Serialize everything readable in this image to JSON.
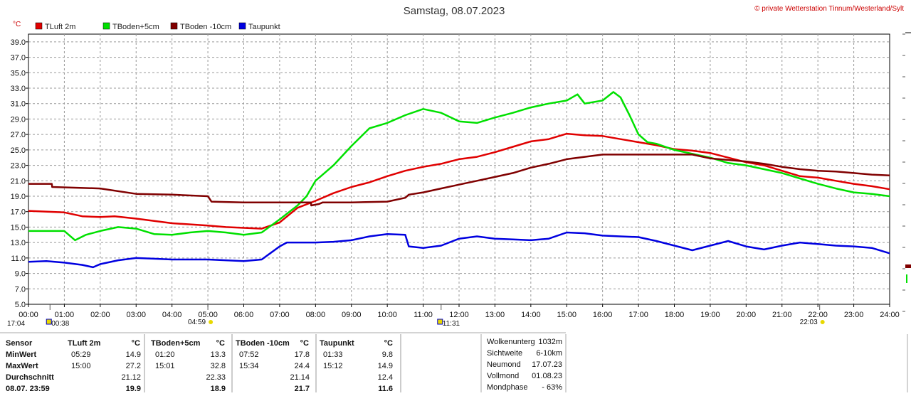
{
  "header": {
    "title": "Samstag, 08.07.2023",
    "copyright": "© private Wetterstation Tinnum/Westerland/Sylt",
    "unit": "°C"
  },
  "colors": {
    "tluft": "#e00000",
    "tboden5": "#00e000",
    "tboden10": "#800000",
    "taupunkt": "#0000e0",
    "marker": "#e8d800"
  },
  "chart_data": {
    "type": "line",
    "title": "Samstag, 08.07.2023",
    "ylabel": "°C",
    "xlabel": "",
    "xlim": [
      0,
      24
    ],
    "ylim": [
      5.0,
      40.0
    ],
    "grid": true,
    "legend_position": "top-left",
    "y_ticks": [
      "5.0",
      "7.0",
      "9.0",
      "11.0",
      "13.0",
      "15.0",
      "17.0",
      "19.0",
      "21.0",
      "23.0",
      "25.0",
      "27.0",
      "29.0",
      "31.0",
      "33.0",
      "35.0",
      "37.0",
      "39.0"
    ],
    "x_ticks": [
      "00:00",
      "01:00",
      "02:00",
      "03:00",
      "04:00",
      "05:00",
      "06:00",
      "07:00",
      "08:00",
      "09:00",
      "10:00",
      "11:00",
      "12:00",
      "13:00",
      "14:00",
      "15:00",
      "16:00",
      "17:00",
      "18:00",
      "19:00",
      "20:00",
      "21:00",
      "22:00",
      "23:00",
      "24:00"
    ],
    "series": [
      {
        "name": "TLuft 2m",
        "color": "#e00000",
        "x": [
          0,
          1,
          1.5,
          2,
          2.4,
          3,
          4,
          5,
          5.5,
          6,
          6.5,
          7,
          7.5,
          8,
          8.5,
          9,
          9.5,
          10,
          10.5,
          11,
          11.5,
          12,
          12.5,
          13,
          13.5,
          14,
          14.5,
          15,
          15.5,
          16,
          16.5,
          17,
          17.5,
          18,
          18.5,
          19,
          19.5,
          20,
          20.5,
          21,
          21.5,
          22,
          22.5,
          23,
          23.5,
          24
        ],
        "y": [
          17.1,
          16.9,
          16.4,
          16.3,
          16.4,
          16.1,
          15.5,
          15.2,
          15.0,
          14.9,
          14.8,
          15.6,
          17.5,
          18.4,
          19.4,
          20.2,
          20.8,
          21.6,
          22.3,
          22.8,
          23.2,
          23.8,
          24.1,
          24.7,
          25.4,
          26.1,
          26.4,
          27.1,
          26.9,
          26.8,
          26.4,
          26.0,
          25.6,
          25.1,
          24.9,
          24.6,
          24.0,
          23.4,
          23.0,
          22.3,
          21.6,
          21.4,
          21.0,
          20.6,
          20.3,
          19.9
        ]
      },
      {
        "name": "TBoden+5cm",
        "color": "#00e000",
        "x": [
          0,
          1,
          1.3,
          1.6,
          2,
          2.5,
          3,
          3.5,
          4,
          4.5,
          5,
          5.5,
          6,
          6.5,
          7,
          7.5,
          7.75,
          8,
          8.5,
          9,
          9.5,
          10,
          10.5,
          11,
          11.5,
          12,
          12.5,
          13,
          13.5,
          14,
          14.5,
          15,
          15.3,
          15.5,
          16,
          16.3,
          16.5,
          16.75,
          17,
          17.25,
          17.5,
          18,
          18.5,
          19,
          19.5,
          20,
          20.5,
          21,
          21.5,
          22,
          22.5,
          23,
          23.5,
          24
        ],
        "y": [
          14.5,
          14.5,
          13.3,
          14.0,
          14.5,
          15.0,
          14.8,
          14.1,
          14.0,
          14.3,
          14.5,
          14.3,
          14.0,
          14.3,
          16.0,
          17.8,
          19.0,
          21.0,
          23.0,
          25.5,
          27.8,
          28.5,
          29.5,
          30.3,
          29.8,
          28.7,
          28.5,
          29.2,
          29.8,
          30.5,
          31.0,
          31.4,
          32.2,
          31.0,
          31.4,
          32.5,
          31.8,
          29.5,
          27.0,
          26.0,
          25.8,
          25.0,
          24.5,
          24.0,
          23.3,
          23.0,
          22.5,
          22.0,
          21.3,
          20.6,
          20.0,
          19.5,
          19.3,
          19.0
        ]
      },
      {
        "name": "TBoden -10cm",
        "color": "#800000",
        "x": [
          0,
          0.65,
          0.66,
          2,
          3,
          4,
          5,
          5.1,
          6,
          7,
          7.87,
          7.88,
          8.1,
          8.2,
          9,
          10,
          10.5,
          10.6,
          11,
          11.5,
          12,
          12.5,
          13,
          13.5,
          14,
          14.5,
          15,
          15.5,
          16,
          16.5,
          17,
          17.5,
          18,
          18.5,
          19,
          19.5,
          20,
          20.5,
          21,
          21.5,
          22,
          22.5,
          23,
          23.5,
          24
        ],
        "y": [
          20.6,
          20.6,
          20.2,
          20.0,
          19.3,
          19.2,
          19.0,
          18.3,
          18.2,
          18.2,
          18.2,
          17.8,
          18.0,
          18.2,
          18.2,
          18.3,
          18.8,
          19.2,
          19.5,
          20.0,
          20.5,
          21.0,
          21.5,
          22.0,
          22.7,
          23.2,
          23.8,
          24.1,
          24.4,
          24.4,
          24.4,
          24.4,
          24.4,
          24.4,
          23.9,
          23.7,
          23.5,
          23.2,
          22.8,
          22.5,
          22.3,
          22.2,
          22.0,
          21.8,
          21.7
        ]
      },
      {
        "name": "Taupunkt",
        "color": "#0000e0",
        "x": [
          0,
          0.5,
          1,
          1.5,
          1.8,
          2,
          2.5,
          3,
          3.5,
          4,
          4.5,
          5,
          5.5,
          6,
          6.5,
          7,
          7.2,
          7.5,
          8,
          8.5,
          9,
          9.5,
          10,
          10.5,
          10.6,
          11,
          11.5,
          12,
          12.5,
          13,
          13.5,
          14,
          14.5,
          15,
          15.5,
          16,
          16.5,
          17,
          17.5,
          18,
          18.5,
          19,
          19.5,
          20,
          20.5,
          21,
          21.5,
          22,
          22.5,
          23,
          23.5,
          24
        ],
        "y": [
          10.5,
          10.6,
          10.4,
          10.1,
          9.8,
          10.2,
          10.7,
          11.0,
          10.9,
          10.8,
          10.8,
          10.8,
          10.7,
          10.6,
          10.8,
          12.5,
          13.0,
          13.0,
          13.0,
          13.1,
          13.3,
          13.8,
          14.1,
          14.0,
          12.5,
          12.3,
          12.6,
          13.5,
          13.8,
          13.5,
          13.4,
          13.3,
          13.5,
          14.3,
          14.2,
          13.9,
          13.8,
          13.7,
          13.2,
          12.6,
          12.0,
          12.6,
          13.2,
          12.5,
          12.1,
          12.6,
          13.0,
          12.8,
          12.6,
          12.5,
          12.3,
          11.6
        ]
      }
    ],
    "markers": [
      {
        "x": 0.6,
        "label": "00:38",
        "pos": "bottom-right"
      },
      {
        "x": 5.0,
        "label": "04:59",
        "pos": "top-left"
      },
      {
        "x": 11.5,
        "label": "11:31",
        "pos": "bottom-right"
      },
      {
        "x": 22.05,
        "label": "22:03",
        "pos": "top-left"
      }
    ],
    "marker_left_label": "17:04"
  },
  "table": {
    "headers": [
      "Sensor",
      "TLuft 2m",
      "°C",
      "TBoden+5cm",
      "°C",
      "TBoden -10cm",
      "°C",
      "Taupunkt",
      "°C"
    ],
    "rows": [
      {
        "label": "MinWert",
        "cells": [
          "05:29",
          "14.9",
          "01:20",
          "13.3",
          "07:52",
          "17.8",
          "01:33",
          "9.8"
        ]
      },
      {
        "label": "MaxWert",
        "cells": [
          "15:00",
          "27.2",
          "15:01",
          "32.8",
          "15:34",
          "24.4",
          "15:12",
          "14.9"
        ]
      },
      {
        "label": "Durchschnitt",
        "cells": [
          "",
          "21.12",
          "",
          "22.33",
          "",
          "21.14",
          "",
          "12.4"
        ]
      },
      {
        "label": "08.07. 23:59",
        "cells": [
          "",
          "19.9",
          "",
          "18.9",
          "",
          "21.7",
          "",
          "11.6"
        ]
      }
    ]
  },
  "astro": [
    {
      "label": "Wolkenunterg",
      "value": "1032m"
    },
    {
      "label": "Sichtweite",
      "value": "6-10km"
    },
    {
      "label": "Neumond",
      "value": "17.07.23"
    },
    {
      "label": "Vollmond",
      "value": "01.08.23"
    },
    {
      "label": "Mondphase",
      "value": "- 63%"
    }
  ]
}
